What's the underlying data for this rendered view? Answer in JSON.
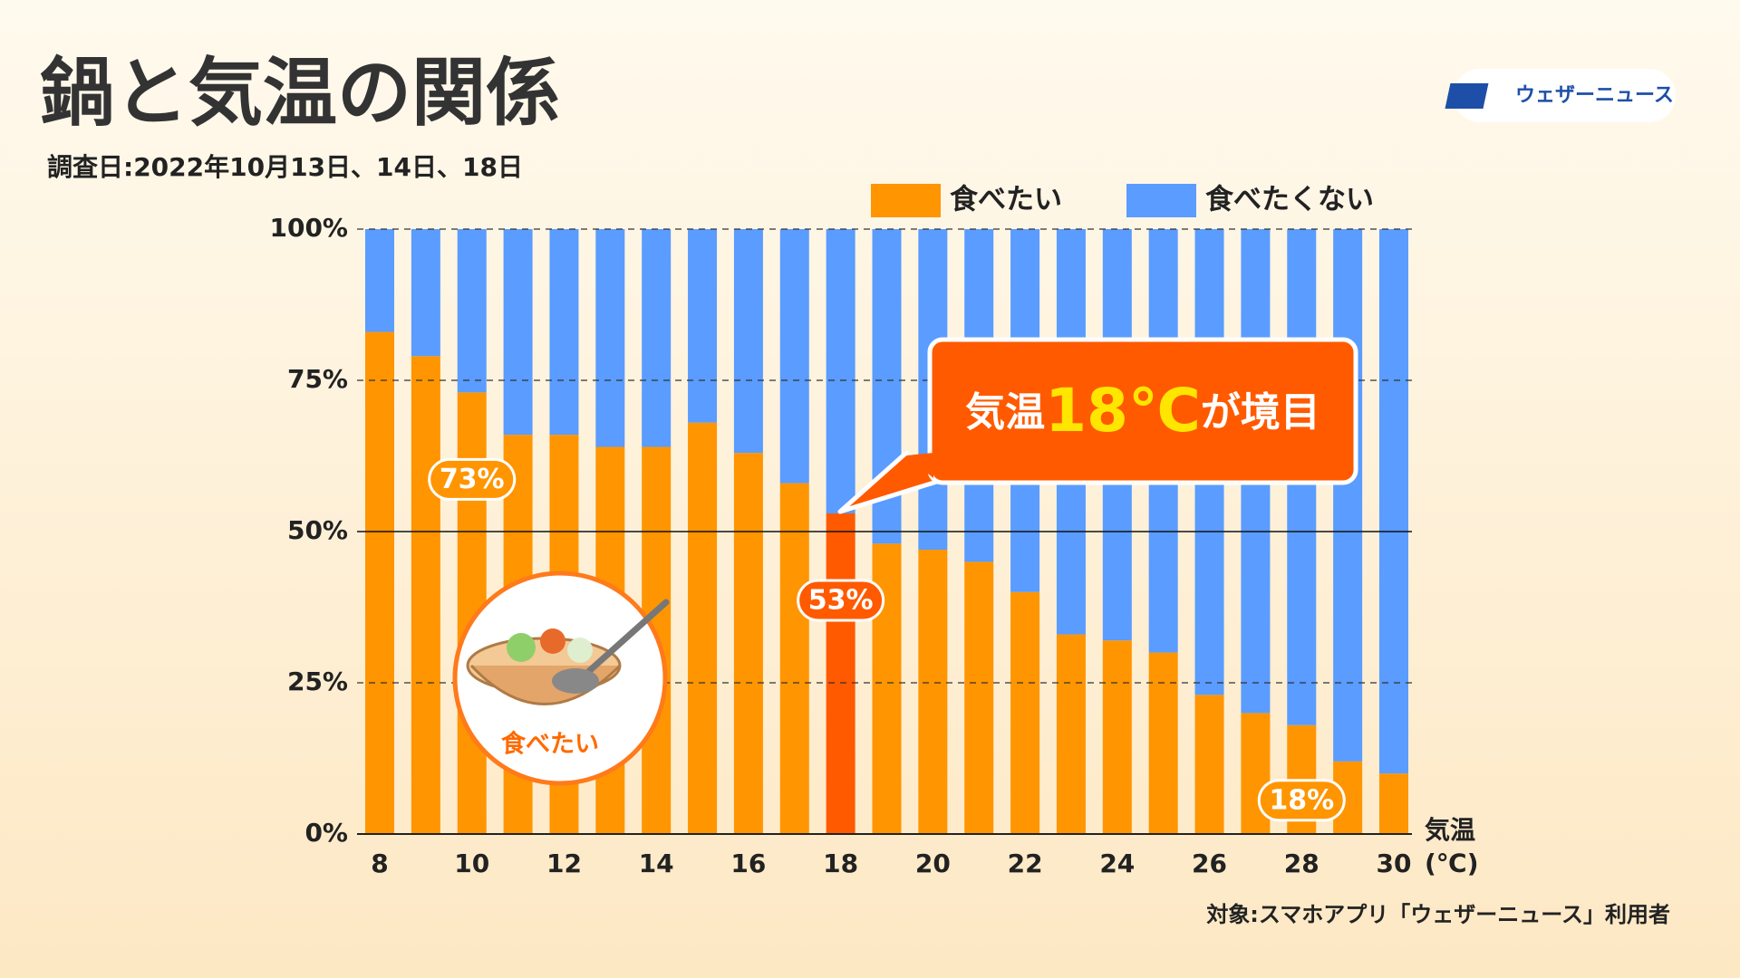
{
  "chart_data": {
    "type": "stacked_bar",
    "title": "鍋と気温の関係",
    "subtitle": "調査日:2022年10月13日、14日、18日",
    "logo": "ウェザーニュース",
    "source": "対象:スマホアプリ「ウェザーニュース」利用者",
    "x_label": [
      "気温",
      "(℃)"
    ],
    "callout": {
      "before": "気温",
      "highlight": "18℃",
      "after": "が境目"
    },
    "illustration_label": "食べたい",
    "categories": [
      "8",
      null,
      "10",
      null,
      "12",
      null,
      "14",
      null,
      "16",
      null,
      "18",
      null,
      "20",
      null,
      "22",
      null,
      "24",
      null,
      "26",
      null,
      "28",
      null,
      "30"
    ],
    "series": [
      {
        "name": "食べたい",
        "color": "#ff9500",
        "colors": [
          "#ff9500",
          "#ff9500",
          "#ff9500",
          "#ff9500",
          "#ff9500",
          "#ff9500",
          "#ff9500",
          "#ff9500",
          "#ff9500",
          "#ff9500",
          "#ff5a00",
          "#ff9500",
          "#ff9500",
          "#ff9500",
          "#ff9500",
          "#ff9500",
          "#ff9500",
          "#ff9500",
          "#ff9500",
          "#ff9500",
          "#ff9500",
          "#ff9500",
          "#ff9500"
        ],
        "values": [
          83,
          79,
          73,
          66,
          66,
          64,
          64,
          68,
          63,
          58,
          53,
          48,
          47,
          45,
          40,
          33,
          32,
          30,
          23,
          20,
          18,
          12,
          10
        ],
        "value_labels": [
          null,
          null,
          "73%",
          null,
          null,
          null,
          null,
          null,
          null,
          null,
          "53%",
          null,
          null,
          null,
          null,
          null,
          null,
          null,
          null,
          null,
          "18%",
          null,
          null
        ]
      },
      {
        "name": "食べたくない",
        "color": "#5a9cff",
        "values": [
          17,
          21,
          27,
          34,
          34,
          36,
          36,
          32,
          37,
          42,
          47,
          52,
          53,
          55,
          60,
          67,
          68,
          70,
          77,
          80,
          82,
          88,
          90
        ]
      }
    ],
    "ylim": [
      0,
      100
    ],
    "yticks": [
      {
        "value": 0,
        "label": "0%"
      },
      {
        "value": 25,
        "label": "25%"
      },
      {
        "value": 50,
        "label": "50%"
      },
      {
        "value": 75,
        "label": "75%"
      },
      {
        "value": 100,
        "label": "100%"
      }
    ],
    "reference_line": 50,
    "grid": true
  }
}
